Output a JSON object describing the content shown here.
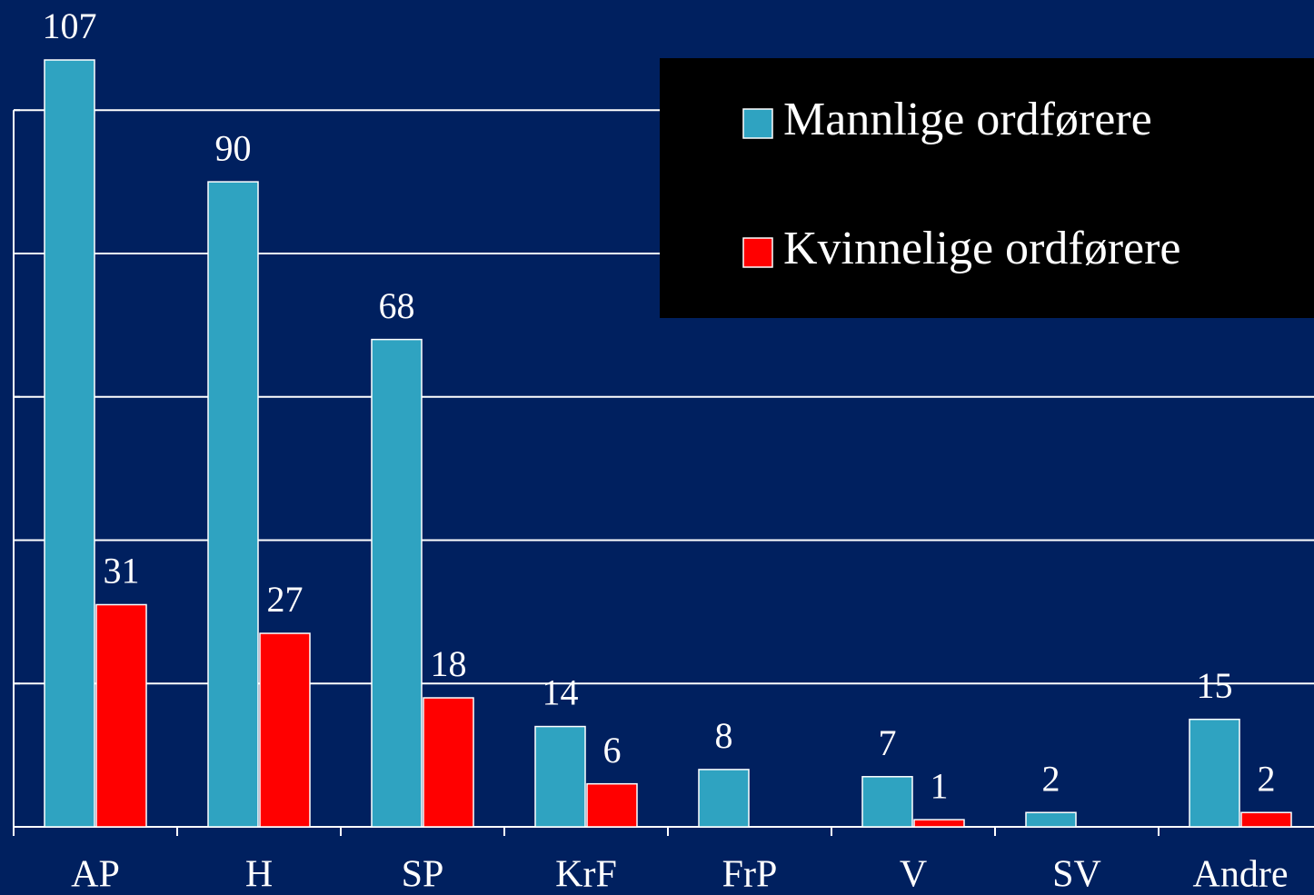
{
  "chart_data": {
    "type": "bar",
    "categories": [
      "AP",
      "H",
      "SP",
      "KrF",
      "FrP",
      "V",
      "SV",
      "Andre"
    ],
    "series": [
      {
        "name": "Mannlige ordførere",
        "color": "#2fa3c1",
        "values": [
          107,
          90,
          68,
          14,
          8,
          7,
          2,
          15
        ]
      },
      {
        "name": "Kvinnelige ordførere",
        "color": "#ff0000",
        "values": [
          31,
          27,
          18,
          6,
          null,
          1,
          null,
          2
        ]
      }
    ],
    "ylim": [
      0,
      110
    ],
    "yticks": [
      0,
      20,
      40,
      60,
      80,
      100
    ],
    "grid": true,
    "legend": "upper right"
  }
}
